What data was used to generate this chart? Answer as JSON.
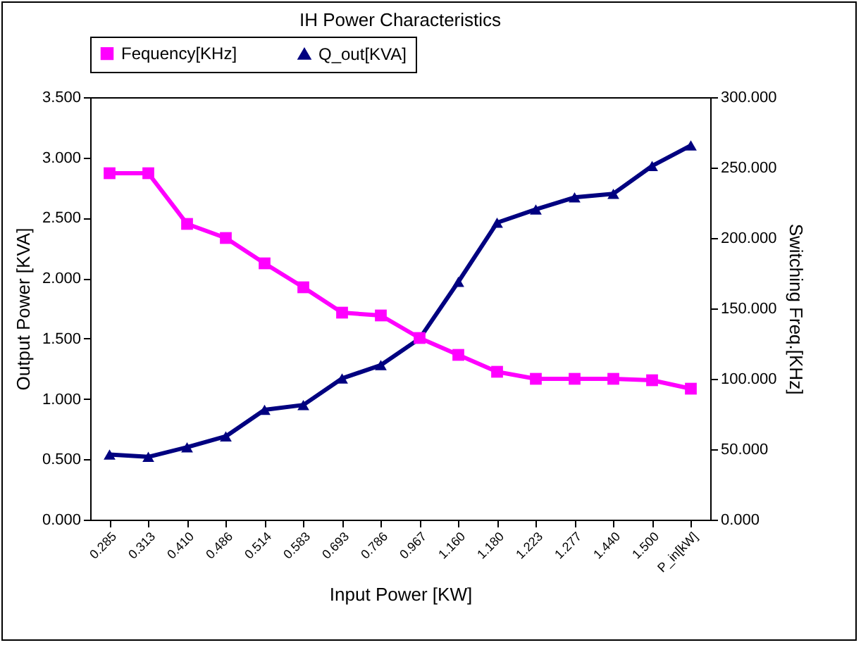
{
  "chart_data": {
    "type": "line",
    "title": "IH Power Characteristics",
    "xlabel": "Input Power [KW]",
    "ylabel": "Output Power [KVA]",
    "y2label": "Switching Freq.[KHz]",
    "categories": [
      "0.285",
      "0.313",
      "0.410",
      "0.486",
      "0.514",
      "0.583",
      "0.693",
      "0.786",
      "0.967",
      "1.160",
      "1.180",
      "1.223",
      "1.277",
      "1.440",
      "1.500",
      "P_in[kW]"
    ],
    "series": [
      {
        "name": "Fequency[KHz]",
        "color": "#ff00ff",
        "axis": "y2",
        "marker": "square",
        "values": [
          246,
          246,
          210,
          200,
          182,
          165,
          147,
          145,
          129,
          117,
          105,
          100,
          100,
          100,
          99,
          93
        ]
      },
      {
        "name": "Q_out[KVA]",
        "color": "#000080",
        "axis": "y",
        "marker": "triangle",
        "values": [
          0.54,
          0.52,
          0.6,
          0.69,
          0.91,
          0.95,
          1.17,
          1.28,
          1.5,
          1.97,
          2.46,
          2.57,
          2.67,
          2.7,
          2.93,
          3.1
        ]
      }
    ],
    "ylim": [
      0,
      3.5
    ],
    "yticks": [
      {
        "value": 0,
        "label": "0.000"
      },
      {
        "value": 0.5,
        "label": "0.500"
      },
      {
        "value": 1,
        "label": "1.000"
      },
      {
        "value": 1.5,
        "label": "1.500"
      },
      {
        "value": 2,
        "label": "2.000"
      },
      {
        "value": 2.5,
        "label": "2.500"
      },
      {
        "value": 3,
        "label": "3.000"
      },
      {
        "value": 3.5,
        "label": "3.500"
      }
    ],
    "y2lim": [
      0,
      300
    ],
    "y2ticks": [
      {
        "value": 0,
        "label": "0.000"
      },
      {
        "value": 50,
        "label": "50.000"
      },
      {
        "value": 100,
        "label": "100.000"
      },
      {
        "value": 150,
        "label": "150.000"
      },
      {
        "value": 200,
        "label": "200.000"
      },
      {
        "value": 250,
        "label": "250.000"
      },
      {
        "value": 300,
        "label": "300.000"
      }
    ],
    "legend": "top",
    "grid": false,
    "line_style": "solid"
  }
}
